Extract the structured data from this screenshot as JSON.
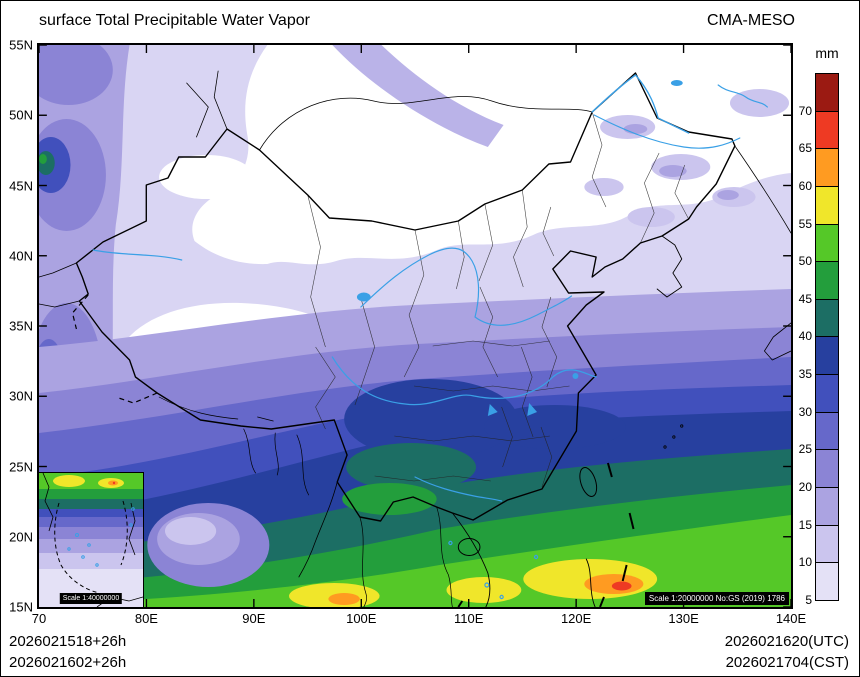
{
  "header": {
    "title": "surface Total Precipitable Water Vapor",
    "model": "CMA-MESO"
  },
  "colorbar": {
    "unit": "mm",
    "cells": [
      {
        "label": "70",
        "color": "#9b1a12"
      },
      {
        "label": "65",
        "color": "#ee3a23"
      },
      {
        "label": "60",
        "color": "#ff9b21"
      },
      {
        "label": "55",
        "color": "#f0e62a"
      },
      {
        "label": "50",
        "color": "#55c828"
      },
      {
        "label": "45",
        "color": "#239e3c"
      },
      {
        "label": "40",
        "color": "#1c6e64"
      },
      {
        "label": "35",
        "color": "#27409f"
      },
      {
        "label": "30",
        "color": "#4150bc"
      },
      {
        "label": "25",
        "color": "#6668ca"
      },
      {
        "label": "20",
        "color": "#8b84d5"
      },
      {
        "label": "15",
        "color": "#aba3e1"
      },
      {
        "label": "10",
        "color": "#cbc5ee"
      },
      {
        "label": "5",
        "color": "#e4e1f6"
      }
    ]
  },
  "axes": {
    "x": [
      "70",
      "80E",
      "90E",
      "100E",
      "110E",
      "120E",
      "130E",
      "140E"
    ],
    "y_top_to_bottom": [
      "55N",
      "50N",
      "45N",
      "40N",
      "35N",
      "30N",
      "25N",
      "20N",
      "15N"
    ]
  },
  "map": {
    "scale_note": "Scale 1:20000000 No:GS (2019) 1786"
  },
  "inset": {
    "scale_note": "Scale 1:40000000"
  },
  "footer": {
    "left_line1": "2026021518+26h",
    "left_line2": "2026021602+26h",
    "right_line1": "2026021620(UTC)",
    "right_line2": "2026021704(CST)"
  },
  "chart_data": {
    "type": "heatmap",
    "title": "surface Total Precipitable Water Vapor",
    "model": "CMA-MESO",
    "unit": "mm",
    "contour_levels": [
      5,
      10,
      15,
      20,
      25,
      30,
      35,
      40,
      45,
      50,
      55,
      60,
      65,
      70
    ],
    "level_colors_low_to_high": [
      "#e4e1f6",
      "#cbc5ee",
      "#aba3e1",
      "#8b84d5",
      "#6668ca",
      "#4150bc",
      "#27409f",
      "#1c6e64",
      "#239e3c",
      "#55c828",
      "#f0e62a",
      "#ff9b21",
      "#ee3a23",
      "#9b1a12"
    ],
    "x_ticks": [
      "70",
      "80E",
      "90E",
      "100E",
      "110E",
      "120E",
      "130E",
      "140E"
    ],
    "y_ticks": [
      "15N",
      "20N",
      "25N",
      "30N",
      "35N",
      "40N",
      "45N",
      "50N",
      "55N"
    ],
    "init_times": [
      "2026021518+26h",
      "2026021602+26h"
    ],
    "valid_times": [
      "2026021620(UTC)",
      "2026021704(CST)"
    ]
  }
}
